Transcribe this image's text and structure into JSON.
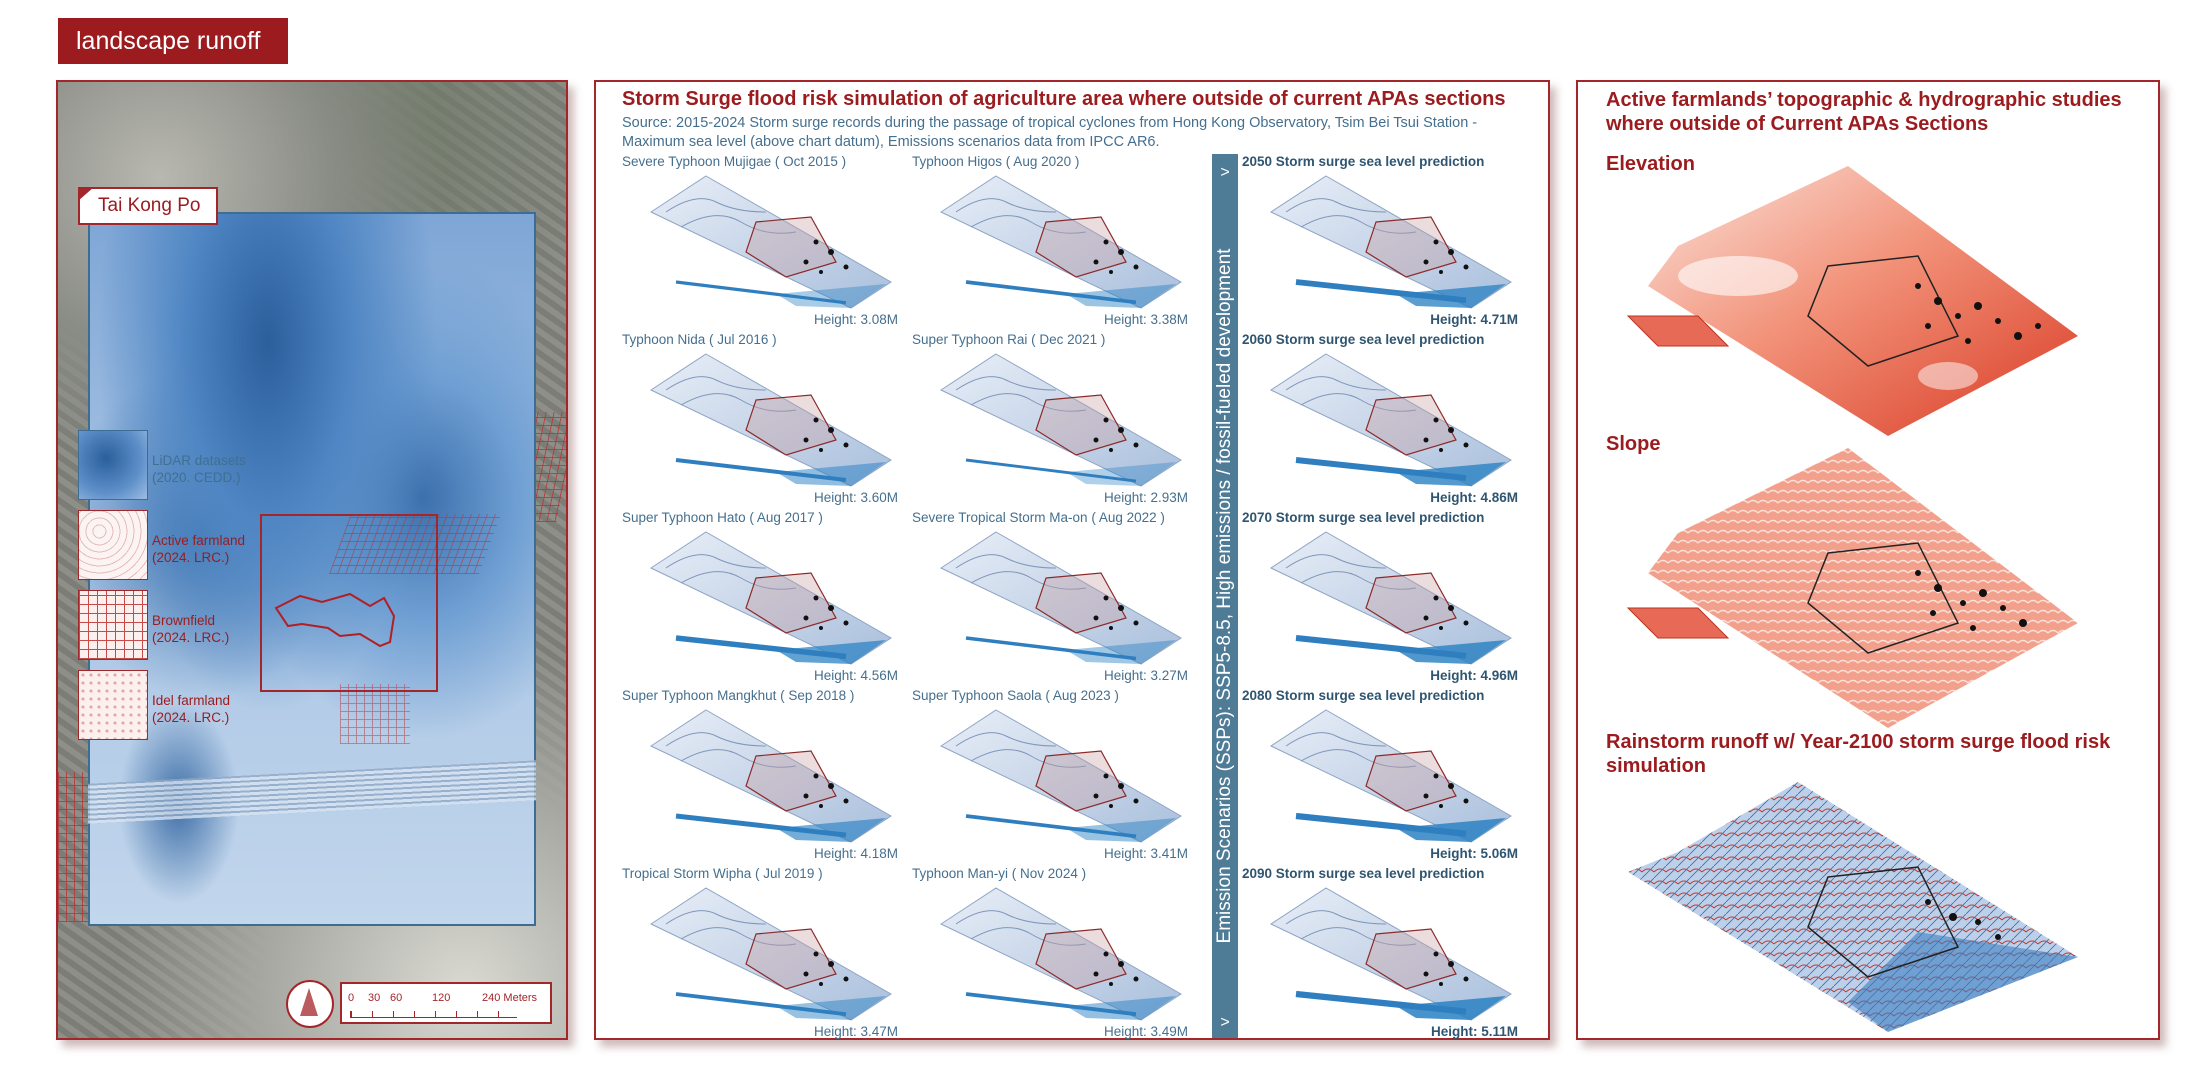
{
  "header": {
    "title": "landscape runoff"
  },
  "map_panel": {
    "location_label": "Tai Kong Po",
    "legend": [
      {
        "key": "lidar",
        "line1": "LiDAR datasets",
        "line2": "(2020. CEDD.)",
        "color": "#3f6f91"
      },
      {
        "key": "active",
        "line1": "Active farmland",
        "line2": "(2024. LRC.)",
        "color": "#9b1b1f"
      },
      {
        "key": "brown",
        "line1": "Brownfield",
        "line2": "(2024. LRC.)",
        "color": "#9b1b1f"
      },
      {
        "key": "idle",
        "line1": "Idel farmland",
        "line2": "(2024. LRC.)",
        "color": "#9b1b1f"
      }
    ],
    "scale": {
      "ticks": [
        "0",
        "30",
        "60",
        "120",
        "240 Meters"
      ]
    }
  },
  "simulation": {
    "title": "Storm Surge flood risk simulation of agriculture area where outside of current APAs sections",
    "source": "Source: 2015-2024 Storm surge records during the passage of tropical cyclones from Hong Kong Observatory, Tsim Bei Tsui Station - Maximum sea level (above chart datum), Emissions scenarios data from IPCC AR6.",
    "historical": [
      {
        "label": "Severe Typhoon Mujigae ( Oct 2015 )",
        "height": "Height: 3.08M",
        "height_m": 3.08
      },
      {
        "label": "Typhoon Higos ( Aug 2020 )",
        "height": "Height: 3.38M",
        "height_m": 3.38
      },
      {
        "label": "Typhoon Nida ( Jul 2016 )",
        "height": "Height: 3.60M",
        "height_m": 3.6
      },
      {
        "label": "Super Typhoon Rai ( Dec 2021 )",
        "height": "Height: 2.93M",
        "height_m": 2.93
      },
      {
        "label": "Super Typhoon Hato ( Aug 2017 )",
        "height": "Height: 4.56M",
        "height_m": 4.56
      },
      {
        "label": "Severe Tropical Storm Ma-on ( Aug 2022 )",
        "height": "Height: 3.27M",
        "height_m": 3.27
      },
      {
        "label": "Super Typhoon Mangkhut ( Sep 2018 )",
        "height": "Height: 4.18M",
        "height_m": 4.18
      },
      {
        "label": "Super Typhoon Saola ( Aug 2023 )",
        "height": "Height: 3.41M",
        "height_m": 3.41
      },
      {
        "label": "Tropical Storm Wipha ( Jul 2019 )",
        "height": "Height: 3.47M",
        "height_m": 3.47
      },
      {
        "label": "Typhoon Man-yi ( Nov 2024 )",
        "height": "Height: 3.49M",
        "height_m": 3.49
      }
    ],
    "scenario_bar": {
      "text": "Emission Scenarios (SSPs): SSP5-8.5, High emissions / fossil-fueled development",
      "arrow": ">"
    },
    "predictions": [
      {
        "label": "2050 Storm surge sea level prediction",
        "height": "Height: 4.71M",
        "height_m": 4.71
      },
      {
        "label": "2060 Storm surge sea level prediction",
        "height": "Height: 4.86M",
        "height_m": 4.86
      },
      {
        "label": "2070 Storm surge sea level prediction",
        "height": "Height: 4.96M",
        "height_m": 4.96
      },
      {
        "label": "2080 Storm surge sea level prediction",
        "height": "Height: 5.06M",
        "height_m": 5.06
      },
      {
        "label": "2090 Storm surge sea level prediction",
        "height": "Height: 5.11M",
        "height_m": 5.11
      }
    ]
  },
  "topography": {
    "title": "Active farmlands’ topographic & hydrographic studies where outside of Current APAs Sections",
    "elevation": "Elevation",
    "slope": "Slope",
    "runoff": "Rainstorm runoff w/ Year-2100 storm surge flood risk simulation"
  },
  "colors": {
    "brand_red": "#9b1b1f",
    "steel_blue": "#4e7b96",
    "label_blue": "#456f8e"
  }
}
